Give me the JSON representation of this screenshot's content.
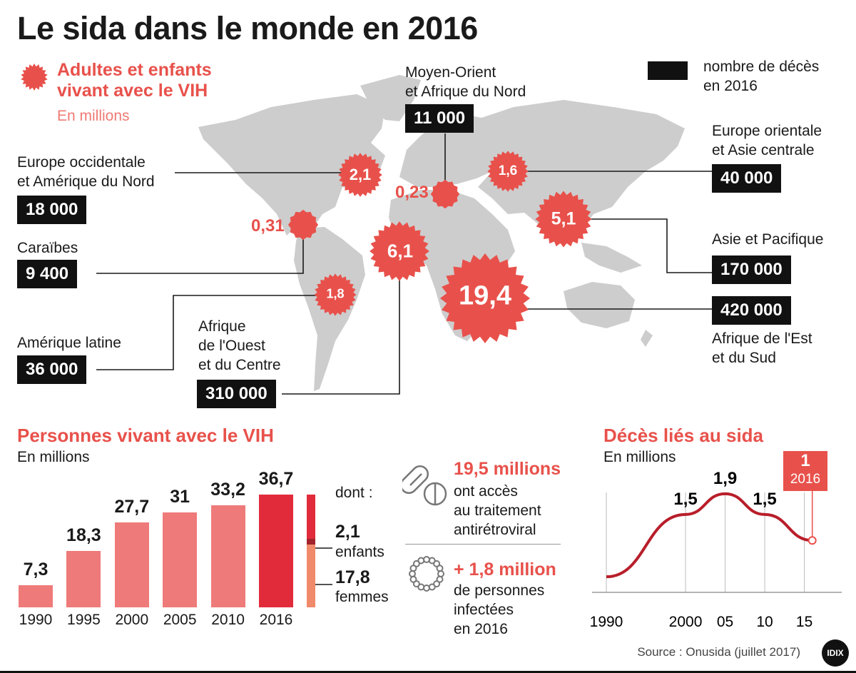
{
  "title": "Le sida dans le monde en 2016",
  "legend": {
    "living_title_line1": "Adultes et enfants",
    "living_title_line2": "vivant avec le VIH",
    "living_unit": "En millions",
    "deaths_line1": "nombre de décès",
    "deaths_line2": "en 2016"
  },
  "colors": {
    "accent_red": "#e8514b",
    "bar_light": "#ef7a7a",
    "bar_dark": "#e22b3a",
    "map_grey": "#cccccc",
    "box_black": "#111111"
  },
  "regions": [
    {
      "name_line1": "Europe occidentale",
      "name_line2": "et Amérique du Nord",
      "name_line3": "",
      "living": "2,1",
      "deaths": "18 000"
    },
    {
      "name_line1": "Caraïbes",
      "name_line2": "",
      "name_line3": "",
      "living": "0,31",
      "deaths": "9 400"
    },
    {
      "name_line1": "Amérique latine",
      "name_line2": "",
      "name_line3": "",
      "living": "1,8",
      "deaths": "36 000"
    },
    {
      "name_line1": "Afrique",
      "name_line2": "de l'Ouest",
      "name_line3": "et du Centre",
      "living": "6,1",
      "deaths": "310 000"
    },
    {
      "name_line1": "Moyen-Orient",
      "name_line2": "et Afrique du Nord",
      "name_line3": "",
      "living": "0,23",
      "deaths": "11 000"
    },
    {
      "name_line1": "Europe orientale",
      "name_line2": "et Asie centrale",
      "name_line3": "",
      "living": "1,6",
      "deaths": "40 000"
    },
    {
      "name_line1": "Asie et Pacifique",
      "name_line2": "",
      "name_line3": "",
      "living": "5,1",
      "deaths": "170 000"
    },
    {
      "name_line1": "Afrique de l'Est",
      "name_line2": "et du Sud",
      "name_line3": "",
      "living": "19,4",
      "deaths": "420 000"
    }
  ],
  "middle": {
    "treatment_value": "19,5 millions",
    "treatment_line1": "ont accès",
    "treatment_line2": "au traitement",
    "treatment_line3": "antirétroviral",
    "infected_value": "+ 1,8 million",
    "infected_line1": "de personnes",
    "infected_line2": "infectées",
    "infected_line3": "en 2016"
  },
  "breakdown": {
    "dont": "dont :",
    "children_value": "2,1",
    "children_label": "enfants",
    "women_value": "17,8",
    "women_label": "femmes"
  },
  "line_callout": {
    "value": "1",
    "year": "2016"
  },
  "source": "Source : Onusida (juillet 2017)",
  "logo": "IDIX",
  "chart_data": [
    {
      "type": "bar",
      "title": "Personnes vivant avec le VIH",
      "subtitle": "En millions",
      "categories": [
        "1990",
        "1995",
        "2000",
        "2005",
        "2010",
        "2016"
      ],
      "values": [
        7.3,
        18.3,
        27.7,
        31,
        33.2,
        36.7
      ],
      "value_labels": [
        "7,3",
        "18,3",
        "27,7",
        "31",
        "33,2",
        "36,7"
      ],
      "highlight_index": 5,
      "breakdown_2016": {
        "children": 2.1,
        "women": 17.8
      }
    },
    {
      "type": "line",
      "title": "Décès liés au sida",
      "subtitle": "En millions",
      "x": [
        1990,
        2000,
        2005,
        2010,
        2016
      ],
      "y": [
        0.3,
        1.5,
        1.9,
        1.5,
        1.0
      ],
      "tick_labels": [
        "1990",
        "2000",
        "05",
        "10",
        "15"
      ],
      "ticks": [
        1990,
        2000,
        2005,
        2010,
        2015
      ],
      "point_labels": [
        {
          "x": 2000,
          "y": 1.5,
          "text": "1,5"
        },
        {
          "x": 2005,
          "y": 1.9,
          "text": "1,9"
        },
        {
          "x": 2010,
          "y": 1.5,
          "text": "1,5"
        }
      ],
      "xlim": [
        1990,
        2019
      ],
      "ylim": [
        0,
        2.2
      ],
      "grid": "vertical"
    }
  ]
}
